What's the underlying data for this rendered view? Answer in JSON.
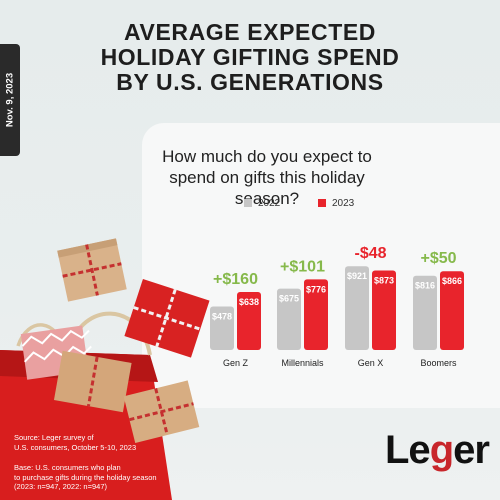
{
  "header": {
    "title_lines": [
      "AVERAGE EXPECTED",
      "HOLIDAY GIFTING SPEND",
      "BY U.S. GENERATIONS"
    ],
    "date": "Nov. 9, 2023"
  },
  "question": "How much do you expect to spend on gifts this holiday season?",
  "colors": {
    "y2022": "#c6c6c6",
    "y2023": "#e8242c",
    "increase": "#86b94b",
    "decrease": "#e8242c"
  },
  "chart_data": {
    "type": "bar",
    "categories": [
      "Gen Z",
      "Millennials",
      "Gen X",
      "Boomers"
    ],
    "series": [
      {
        "name": "2022",
        "values": [
          478,
          675,
          921,
          816
        ],
        "labels": [
          "$478",
          "$675",
          "$921",
          "$816"
        ]
      },
      {
        "name": "2023",
        "values": [
          638,
          776,
          873,
          866
        ],
        "labels": [
          "$638",
          "$776",
          "$873",
          "$866"
        ]
      }
    ],
    "differences": [
      "+$160",
      "+$101",
      "-$48",
      "+$50"
    ],
    "legend_position": "top",
    "grid": false
  },
  "footer": {
    "source": [
      "Source: Leger survey of",
      "U.S. consumers, October 5-10, 2023"
    ],
    "base": [
      "Base: U.S. consumers who plan",
      "to purchase gifts during the holiday season",
      "(2023: n=947, 2022: n=947)"
    ],
    "logo_text": "Leger"
  }
}
